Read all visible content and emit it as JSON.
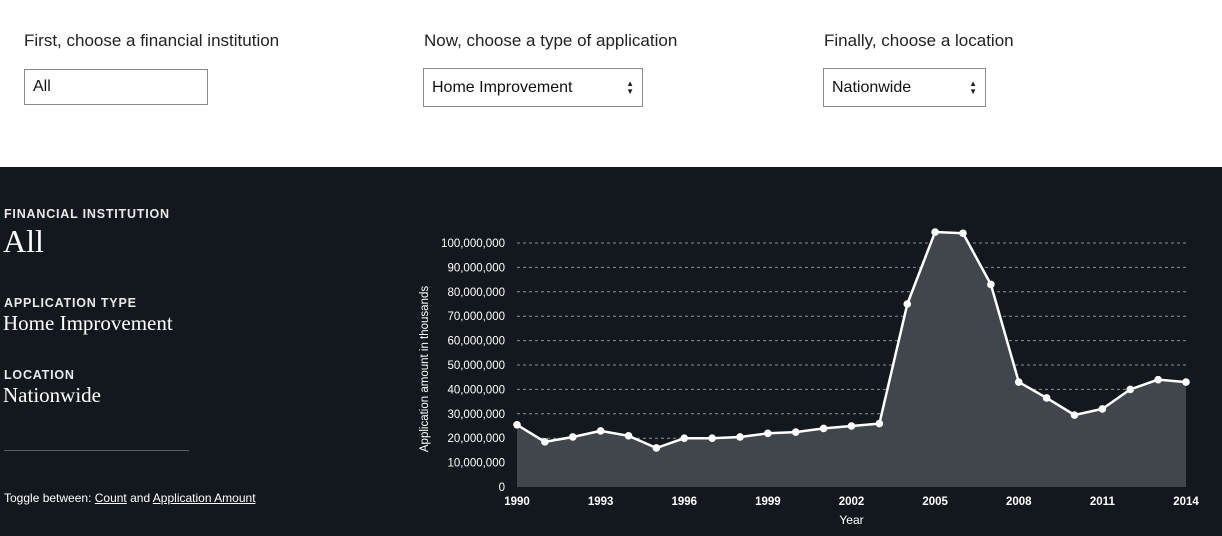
{
  "controls": {
    "institution": {
      "label": "First, choose a financial institution",
      "value": "All"
    },
    "application": {
      "label": "Now, choose a type of application",
      "selected": "Home Improvement"
    },
    "location": {
      "label": "Finally, choose a location",
      "selected": "Nationwide"
    }
  },
  "summary": {
    "institution_kicker": "FINANCIAL INSTITUTION",
    "institution_value": "All",
    "application_kicker": "APPLICATION TYPE",
    "application_value": "Home Improvement",
    "location_kicker": "LOCATION",
    "location_value": "Nationwide",
    "toggle_prefix": "Toggle between: ",
    "toggle_count": "Count",
    "toggle_and": " and ",
    "toggle_amount": "Application Amount"
  },
  "chart_data": {
    "type": "area",
    "xlabel": "Year",
    "ylabel": "Application amount in thousands",
    "x": [
      1990,
      1991,
      1992,
      1993,
      1994,
      1995,
      1996,
      1997,
      1998,
      1999,
      2000,
      2001,
      2002,
      2003,
      2004,
      2005,
      2006,
      2007,
      2008,
      2009,
      2010,
      2011,
      2012,
      2013,
      2014
    ],
    "values": [
      25500000,
      18500000,
      20500000,
      23000000,
      21000000,
      16000000,
      20000000,
      20000000,
      20500000,
      22000000,
      22500000,
      24000000,
      25000000,
      26000000,
      75000000,
      104500000,
      104000000,
      83000000,
      43000000,
      36500000,
      29500000,
      32000000,
      40000000,
      44000000,
      43000000
    ],
    "xlim": [
      1990,
      2014
    ],
    "ylim": [
      0,
      100000000
    ],
    "xticks": [
      "1990",
      "1993",
      "1996",
      "1999",
      "2002",
      "2005",
      "2008",
      "2011",
      "2014"
    ],
    "yticks": [
      "0",
      "10,000,000",
      "20,000,000",
      "30,000,000",
      "40,000,000",
      "50,000,000",
      "60,000,000",
      "70,000,000",
      "80,000,000",
      "90,000,000",
      "100,000,000"
    ],
    "grid": true,
    "colors": {
      "fill": "#41464d",
      "line": "#ffffff",
      "grid": "#8a8f94",
      "text": "#ffffff"
    }
  }
}
